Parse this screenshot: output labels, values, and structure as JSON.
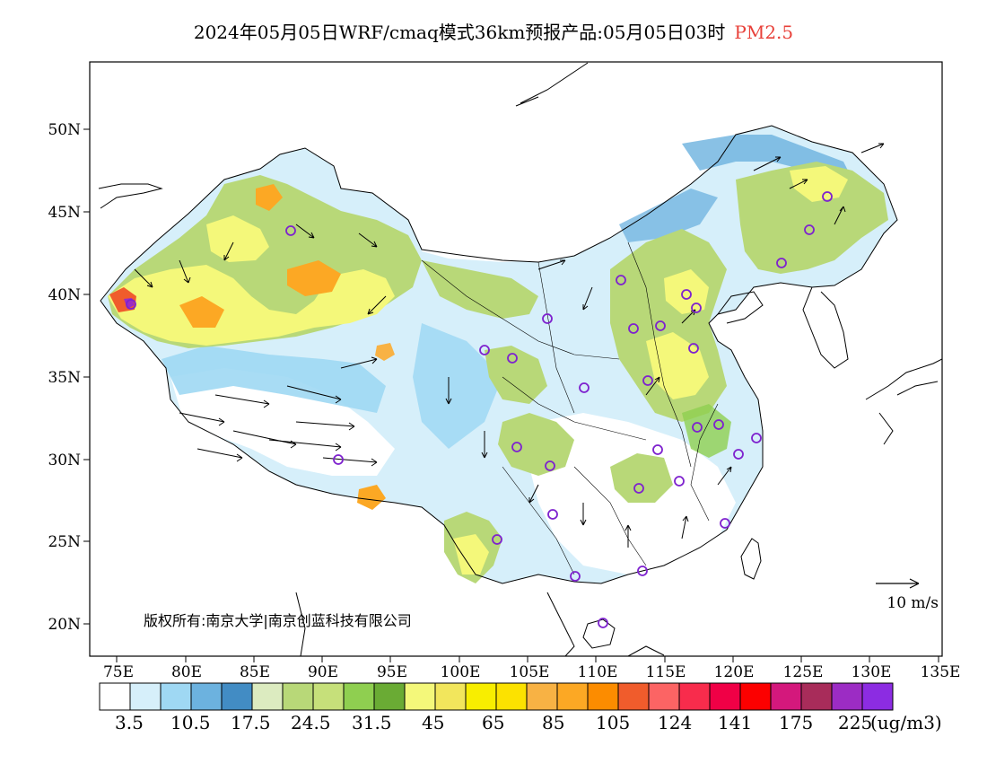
{
  "title": {
    "main": "2024年05月05日WRF/cmaq模式36km预报产品:05月05日03时",
    "variable": "PM2.5"
  },
  "map": {
    "lat_labels": [
      "50N",
      "45N",
      "40N",
      "35N",
      "30N",
      "25N",
      "20N"
    ],
    "lon_labels": [
      "75E",
      "80E",
      "85E",
      "90E",
      "95E",
      "100E",
      "105E",
      "110E",
      "115E",
      "120E",
      "125E",
      "130E",
      "135E"
    ],
    "copyright": "版权所有:南京大学|南京创蓝科技有限公司",
    "wind_scale_label": "10 m/s"
  },
  "colorbar": {
    "colors": [
      "#ffffff",
      "#d6effa",
      "#9fd8f3",
      "#6cb2df",
      "#428cc4",
      "#dcebc0",
      "#b8d878",
      "#c6e07a",
      "#8fcf50",
      "#6aab34",
      "#f4f87a",
      "#f2e65c",
      "#f8ee00",
      "#fce200",
      "#f8b244",
      "#fca824",
      "#fc8c00",
      "#f05c2c",
      "#fc6464",
      "#f82c4c",
      "#f00046",
      "#fc0000",
      "#d4187c",
      "#a82c5a",
      "#9c2cc4",
      "#8c2ce2"
    ],
    "labels": [
      "3.5",
      "10.5",
      "17.5",
      "24.5",
      "31.5",
      "45",
      "65",
      "85",
      "105",
      "124",
      "141",
      "175",
      "225"
    ],
    "unit": "(ug/m3)"
  }
}
